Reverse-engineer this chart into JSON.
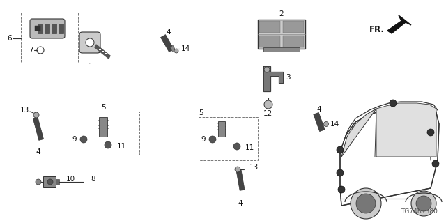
{
  "part_number": "TG74B1380",
  "background_color": "#ffffff",
  "figsize": [
    6.4,
    3.2
  ],
  "dpi": 100,
  "lc": "#222222",
  "gray1": "#888888",
  "gray2": "#aaaaaa",
  "gray3": "#555555",
  "dark": "#333333"
}
